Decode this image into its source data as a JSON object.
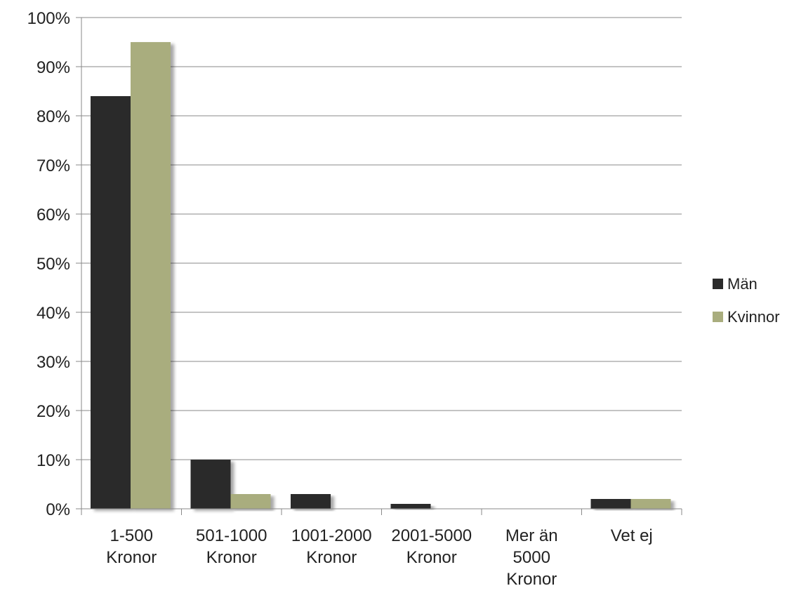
{
  "chart_data": {
    "type": "bar",
    "title": "",
    "xlabel": "",
    "ylabel": "",
    "categories": [
      [
        "1-500",
        "Kronor"
      ],
      [
        "501-1000",
        "Kronor"
      ],
      [
        "1001-2000",
        "Kronor"
      ],
      [
        "2001-5000",
        "Kronor"
      ],
      [
        "Mer än",
        "5000",
        "Kronor"
      ],
      [
        "Vet ej"
      ]
    ],
    "series": [
      {
        "name": "Män",
        "color": "#2b2b2b",
        "values": [
          84,
          10,
          3,
          1,
          0,
          2
        ]
      },
      {
        "name": "Kvinnor",
        "color": "#a9ad7e",
        "values": [
          95,
          3,
          0,
          0,
          0,
          2
        ]
      }
    ],
    "ylim": [
      0,
      100
    ],
    "yticks": [
      0,
      10,
      20,
      30,
      40,
      50,
      60,
      70,
      80,
      90,
      100
    ],
    "ytick_suffix": "%",
    "grid": true,
    "legend_position": "right"
  }
}
